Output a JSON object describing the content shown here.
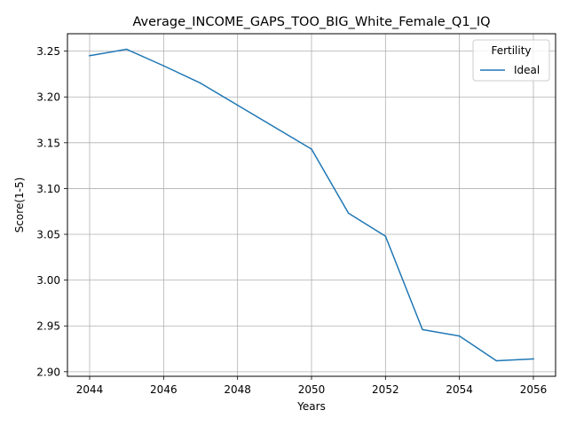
{
  "chart_data": {
    "type": "line",
    "title": "Average_INCOME_GAPS_TOO_BIG_White_Female_Q1_IQ",
    "xlabel": "Years",
    "ylabel": "Score(1-5)",
    "x": [
      2044,
      2045,
      2046,
      2047,
      2048,
      2049,
      2050,
      2051,
      2052,
      2053,
      2054,
      2055,
      2056
    ],
    "series": [
      {
        "name": "Ideal",
        "color": "#1f77b4",
        "values": [
          3.245,
          3.252,
          3.234,
          3.215,
          3.191,
          3.167,
          3.143,
          3.073,
          3.048,
          2.946,
          2.939,
          2.912,
          2.914
        ]
      }
    ],
    "xlim": [
      2043.4,
      2056.6
    ],
    "ylim": [
      2.895,
      3.269
    ],
    "xticks": [
      2044,
      2046,
      2048,
      2050,
      2052,
      2054,
      2056
    ],
    "yticks": [
      "2.90",
      "2.95",
      "3.00",
      "3.05",
      "3.10",
      "3.15",
      "3.20",
      "3.25"
    ],
    "grid": true,
    "legend": {
      "title": "Fertility",
      "position": "top-right"
    }
  }
}
